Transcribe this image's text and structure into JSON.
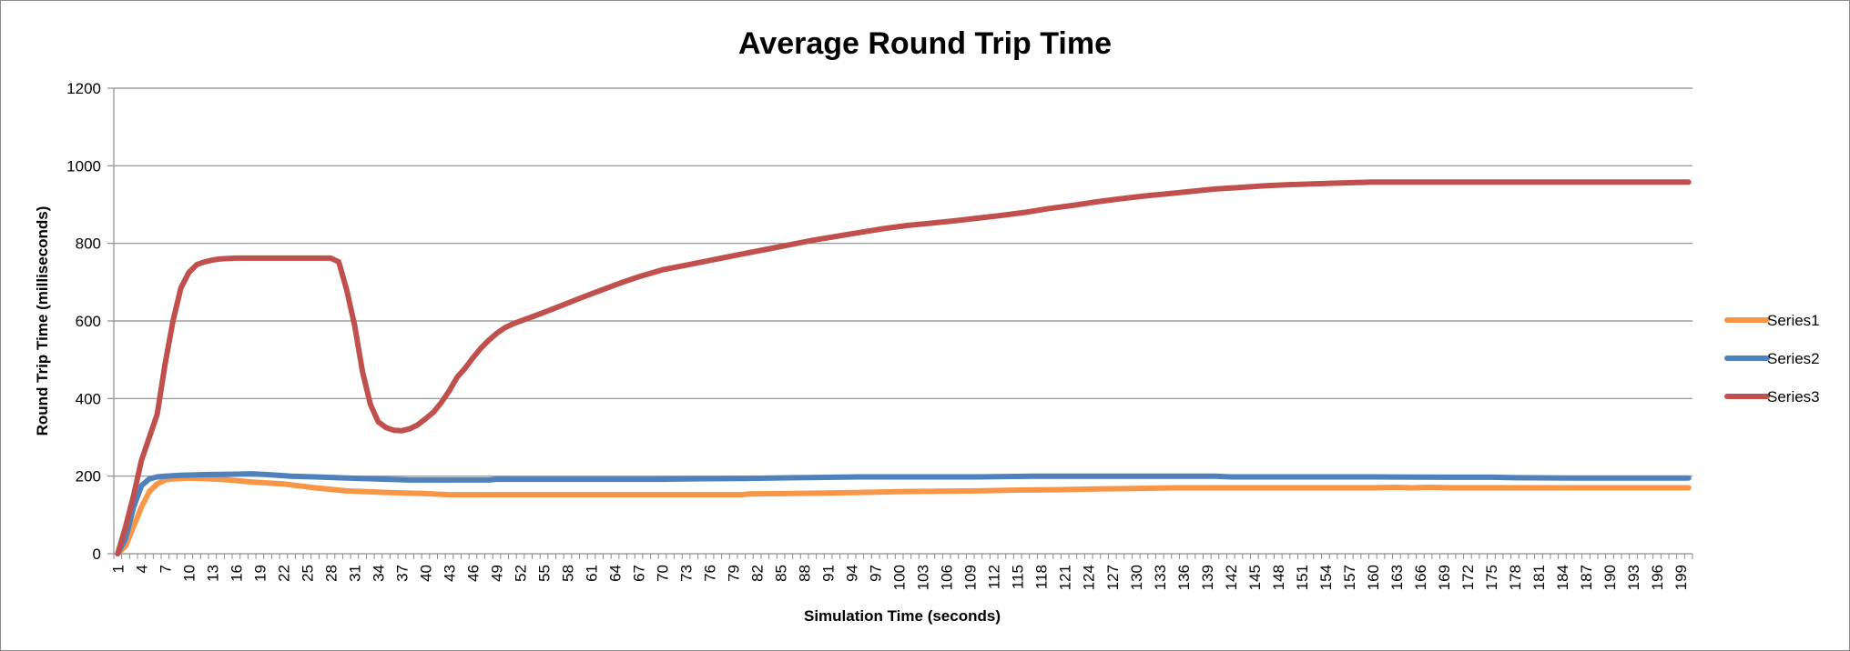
{
  "chart_data": {
    "type": "line",
    "title": "Average Round Trip Time",
    "xlabel": "Simulation Time (seconds)",
    "ylabel": "Round Trip Time (milliseconds)",
    "xlim": [
      1,
      200
    ],
    "ylim": [
      0,
      1200
    ],
    "y_ticks": [
      0,
      200,
      400,
      600,
      800,
      1000,
      1200
    ],
    "x_tick_start": 1,
    "x_tick_step": 3,
    "x_tick_end": 199,
    "grid": "horizontal",
    "legend": "right",
    "series": [
      {
        "name": "Series1",
        "color": "#f79646",
        "points": [
          [
            1,
            0
          ],
          [
            2,
            20
          ],
          [
            3,
            70
          ],
          [
            4,
            120
          ],
          [
            5,
            160
          ],
          [
            6,
            180
          ],
          [
            7,
            190
          ],
          [
            8,
            193
          ],
          [
            10,
            195
          ],
          [
            14,
            192
          ],
          [
            18,
            185
          ],
          [
            22,
            180
          ],
          [
            26,
            170
          ],
          [
            30,
            162
          ],
          [
            35,
            158
          ],
          [
            40,
            155
          ],
          [
            43,
            152
          ],
          [
            50,
            152
          ],
          [
            60,
            152
          ],
          [
            70,
            152
          ],
          [
            80,
            152
          ],
          [
            81,
            154
          ],
          [
            90,
            156
          ],
          [
            95,
            158
          ],
          [
            100,
            160
          ],
          [
            105,
            161
          ],
          [
            110,
            162
          ],
          [
            115,
            164
          ],
          [
            120,
            165
          ],
          [
            125,
            167
          ],
          [
            130,
            168
          ],
          [
            135,
            170
          ],
          [
            140,
            170
          ],
          [
            150,
            170
          ],
          [
            160,
            170
          ],
          [
            163,
            171
          ],
          [
            165,
            170
          ],
          [
            167,
            171
          ],
          [
            170,
            170
          ],
          [
            180,
            170
          ],
          [
            190,
            170
          ],
          [
            200,
            170
          ]
        ]
      },
      {
        "name": "Series2",
        "color": "#4f81bd",
        "points": [
          [
            1,
            0
          ],
          [
            2,
            40
          ],
          [
            3,
            120
          ],
          [
            4,
            175
          ],
          [
            5,
            193
          ],
          [
            6,
            198
          ],
          [
            7,
            200
          ],
          [
            9,
            202
          ],
          [
            12,
            204
          ],
          [
            16,
            205
          ],
          [
            18,
            206
          ],
          [
            20,
            204
          ],
          [
            23,
            200
          ],
          [
            26,
            198
          ],
          [
            30,
            195
          ],
          [
            35,
            192
          ],
          [
            38,
            190
          ],
          [
            45,
            190
          ],
          [
            48,
            190
          ],
          [
            49,
            192
          ],
          [
            55,
            192
          ],
          [
            60,
            192
          ],
          [
            70,
            192
          ],
          [
            73,
            193
          ],
          [
            80,
            194
          ],
          [
            87,
            196
          ],
          [
            95,
            198
          ],
          [
            100,
            198
          ],
          [
            110,
            198
          ],
          [
            117,
            200
          ],
          [
            125,
            200
          ],
          [
            130,
            200
          ],
          [
            140,
            200
          ],
          [
            142,
            198
          ],
          [
            150,
            198
          ],
          [
            160,
            198
          ],
          [
            170,
            197
          ],
          [
            175,
            197
          ],
          [
            178,
            196
          ],
          [
            185,
            195
          ],
          [
            190,
            195
          ],
          [
            200,
            195
          ]
        ]
      },
      {
        "name": "Series3",
        "color": "#c0504d",
        "points": [
          [
            1,
            0
          ],
          [
            2,
            70
          ],
          [
            3,
            150
          ],
          [
            4,
            240
          ],
          [
            5,
            300
          ],
          [
            6,
            360
          ],
          [
            7,
            490
          ],
          [
            8,
            600
          ],
          [
            9,
            685
          ],
          [
            10,
            725
          ],
          [
            11,
            745
          ],
          [
            12,
            752
          ],
          [
            13,
            757
          ],
          [
            14,
            760
          ],
          [
            16,
            762
          ],
          [
            20,
            762
          ],
          [
            24,
            762
          ],
          [
            28,
            762
          ],
          [
            29,
            752
          ],
          [
            30,
            680
          ],
          [
            31,
            590
          ],
          [
            32,
            470
          ],
          [
            33,
            385
          ],
          [
            34,
            340
          ],
          [
            35,
            325
          ],
          [
            36,
            318
          ],
          [
            37,
            317
          ],
          [
            38,
            322
          ],
          [
            39,
            332
          ],
          [
            40,
            348
          ],
          [
            41,
            365
          ],
          [
            42,
            390
          ],
          [
            43,
            420
          ],
          [
            44,
            455
          ],
          [
            45,
            478
          ],
          [
            46,
            505
          ],
          [
            47,
            530
          ],
          [
            48,
            550
          ],
          [
            49,
            568
          ],
          [
            50,
            582
          ],
          [
            51,
            592
          ],
          [
            53,
            607
          ],
          [
            55,
            622
          ],
          [
            57,
            638
          ],
          [
            60,
            662
          ],
          [
            63,
            685
          ],
          [
            65,
            700
          ],
          [
            67,
            714
          ],
          [
            70,
            732
          ],
          [
            72,
            740
          ],
          [
            74,
            748
          ],
          [
            76,
            756
          ],
          [
            78,
            764
          ],
          [
            80,
            772
          ],
          [
            83,
            784
          ],
          [
            86,
            796
          ],
          [
            89,
            808
          ],
          [
            92,
            818
          ],
          [
            95,
            828
          ],
          [
            98,
            838
          ],
          [
            101,
            846
          ],
          [
            104,
            852
          ],
          [
            107,
            858
          ],
          [
            110,
            865
          ],
          [
            113,
            872
          ],
          [
            116,
            880
          ],
          [
            119,
            890
          ],
          [
            122,
            898
          ],
          [
            125,
            907
          ],
          [
            128,
            915
          ],
          [
            131,
            922
          ],
          [
            134,
            928
          ],
          [
            137,
            934
          ],
          [
            140,
            940
          ],
          [
            143,
            944
          ],
          [
            146,
            948
          ],
          [
            149,
            951
          ],
          [
            152,
            953
          ],
          [
            155,
            955
          ],
          [
            158,
            957
          ],
          [
            160,
            958
          ],
          [
            165,
            958
          ],
          [
            170,
            958
          ],
          [
            180,
            958
          ],
          [
            190,
            958
          ],
          [
            200,
            958
          ]
        ]
      }
    ]
  }
}
